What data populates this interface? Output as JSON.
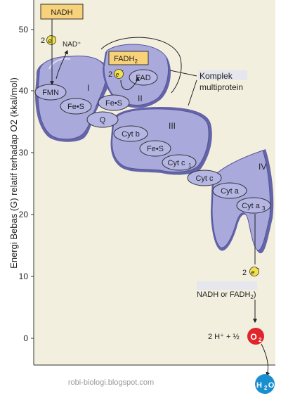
{
  "axis": {
    "ylabel": "Energi Bebas (G) relatif terhadap O2 (kkal/mol)",
    "ticks": [
      "50",
      "40",
      "30",
      "20",
      "10",
      "0"
    ]
  },
  "labels": {
    "nadh": "NADH",
    "nad_plus": "NAD⁺",
    "fadh2_base": "FADH",
    "fadh2_sub": "2",
    "fad": "FAD",
    "two_top": "2",
    "two_mid": "2",
    "two_bottom": "2",
    "e_symbol": "e",
    "e_minus": "−",
    "complex_I": "I",
    "complex_II": "II",
    "complex_III": "III",
    "complex_IV": "IV",
    "fmn": "FMN",
    "fes_1": "Fe•S",
    "fes_2": "Fe•S",
    "fes_3": "Fe•S",
    "q": "Q",
    "cytb": "Cyt b",
    "cytc1": "Cyt c",
    "cytc1_sub": "1",
    "cytc": "Cyt c",
    "cyta": "Cyt a",
    "cyta3": "Cyt a",
    "cyta3_sub": "3",
    "multiprotein_line1": "Komplek",
    "multiprotein_line2": "multiprotein",
    "nadh_or_fadh2": "NADH or FADH",
    "nadh_or_fadh2_sub": "2",
    "nadh_or_fadh2_close": ")",
    "proton_eq": "2 H⁺ + ½",
    "o2": "O",
    "o2_sub": "2",
    "h2o_h": "H",
    "h2o_sub": "2",
    "h2o_o": "O",
    "watermark": "robi-biologi.blogspot.com"
  },
  "colors": {
    "panel": "#f3efdf",
    "protein": "#a9a9dc",
    "protein_shadow": "#6464a8",
    "carrier": "#b6b6e4",
    "box": "#f8d27a",
    "electron": "#f2e24a",
    "o2": "#e0262b",
    "h2o": "#1a8fd0"
  }
}
